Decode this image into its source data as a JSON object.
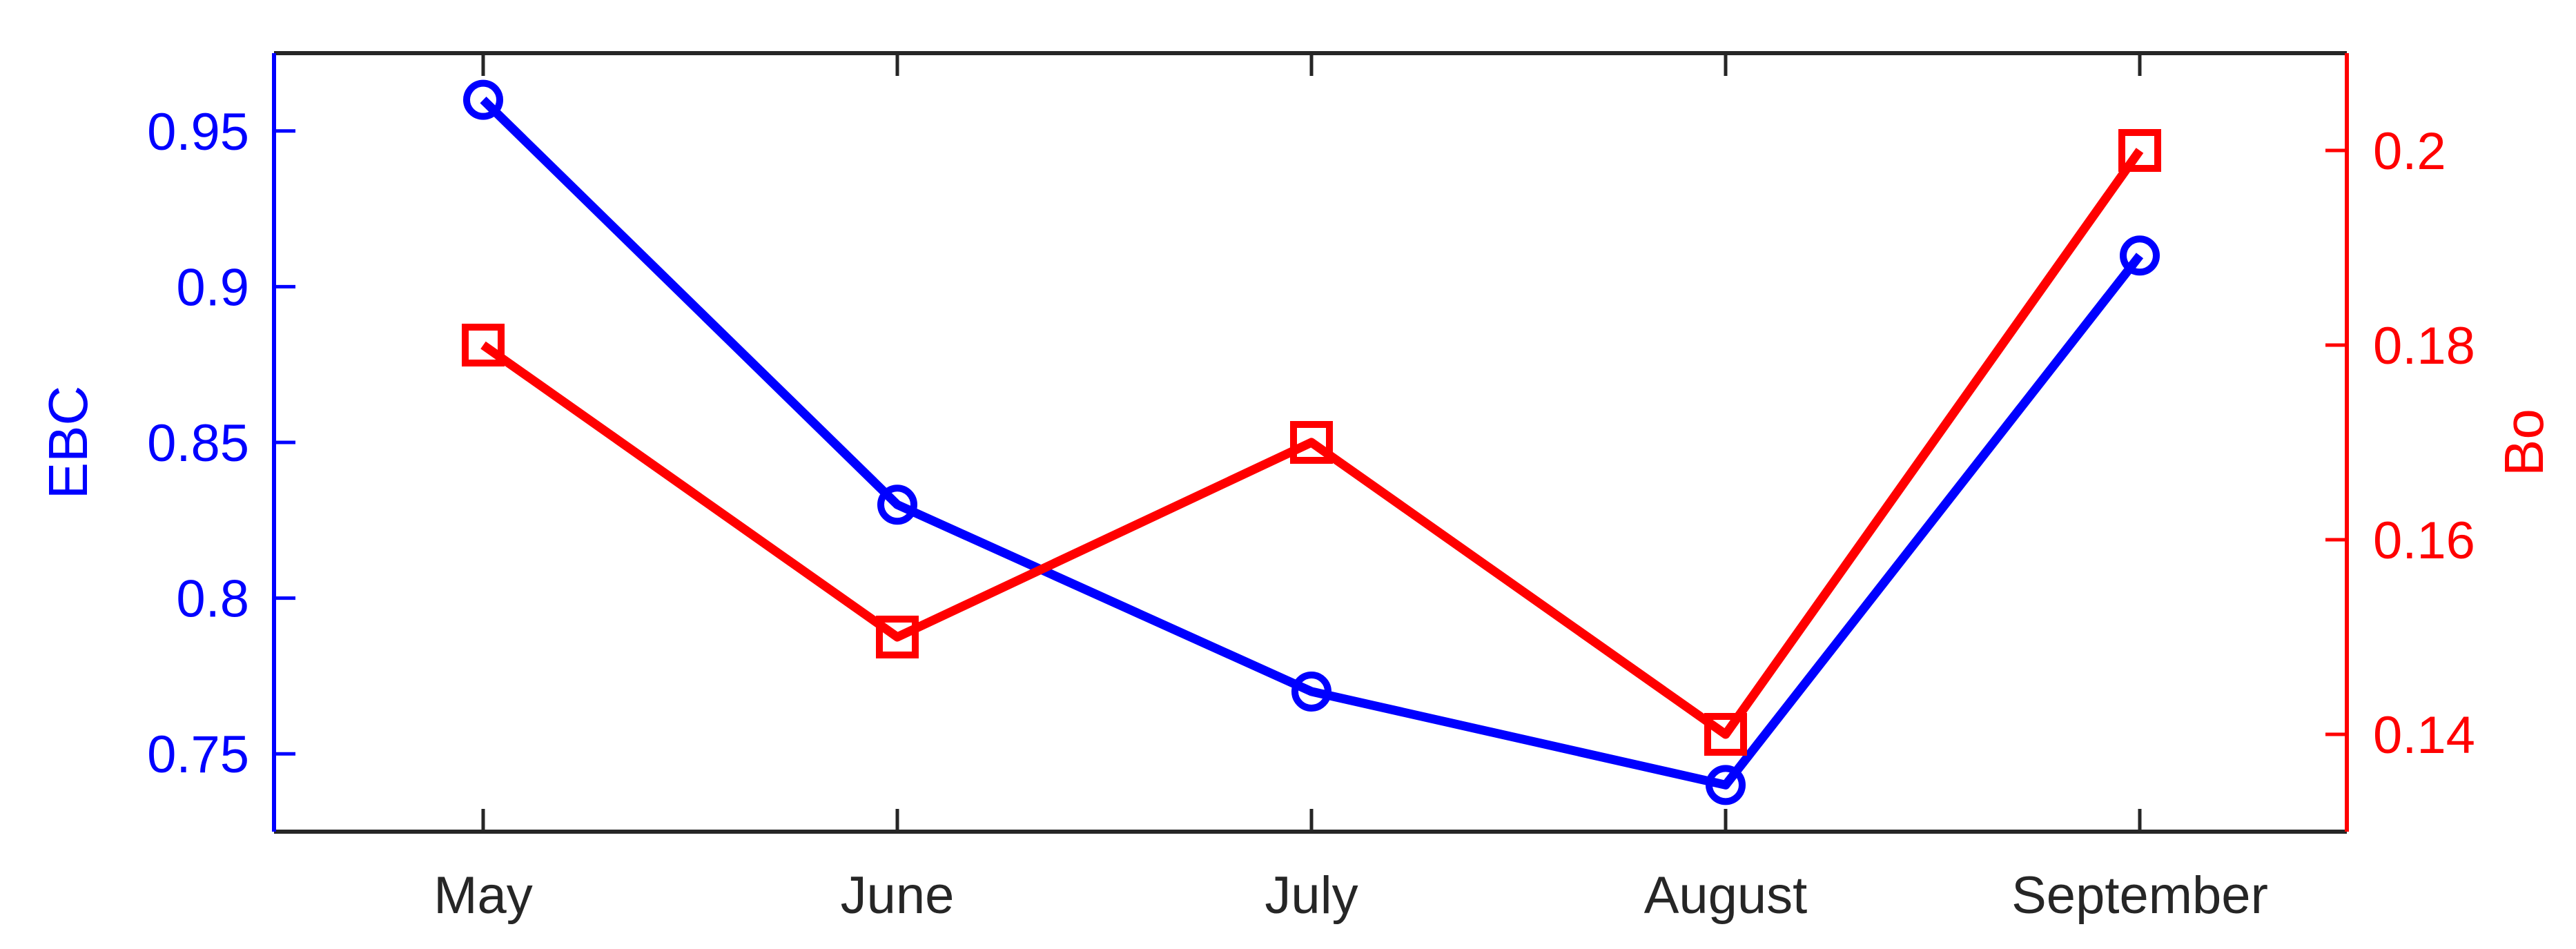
{
  "chart_data": {
    "type": "line",
    "title": "",
    "xlabel": "",
    "ylabel_left": "EBC",
    "ylabel_right": "Bo",
    "categories": [
      "May",
      "June",
      "July",
      "August",
      "September"
    ],
    "series": [
      {
        "name": "EBC",
        "axis": "left",
        "marker": "circle",
        "color": "#0000ff",
        "values": [
          0.96,
          0.83,
          0.77,
          0.74,
          0.91
        ]
      },
      {
        "name": "Bo",
        "axis": "right",
        "marker": "square",
        "color": "#ff0000",
        "values": [
          0.18,
          0.15,
          0.17,
          0.14,
          0.2
        ]
      }
    ],
    "axes": {
      "left": {
        "label": "EBC",
        "color": "#0000ff",
        "ylim": [
          0.725,
          0.975
        ],
        "ticks": [
          {
            "value": 0.95,
            "label": "0.95"
          },
          {
            "value": 0.9,
            "label": "0.9"
          },
          {
            "value": 0.85,
            "label": "0.85"
          },
          {
            "value": 0.8,
            "label": "0.8"
          },
          {
            "value": 0.75,
            "label": "0.75"
          }
        ]
      },
      "right": {
        "label": "Bo",
        "color": "#ff0000",
        "ylim": [
          0.13,
          0.21
        ],
        "ticks": [
          {
            "value": 0.2,
            "label": "0.2"
          },
          {
            "value": 0.18,
            "label": "0.18"
          },
          {
            "value": 0.16,
            "label": "0.16"
          },
          {
            "value": 0.14,
            "label": "0.14"
          }
        ]
      },
      "x": {
        "color": "#262626",
        "tick_labels": [
          "May",
          "June",
          "July",
          "August",
          "September"
        ]
      }
    },
    "frame_color": "#262626",
    "background": "#ffffff",
    "grid": false,
    "legend_position": "none"
  }
}
